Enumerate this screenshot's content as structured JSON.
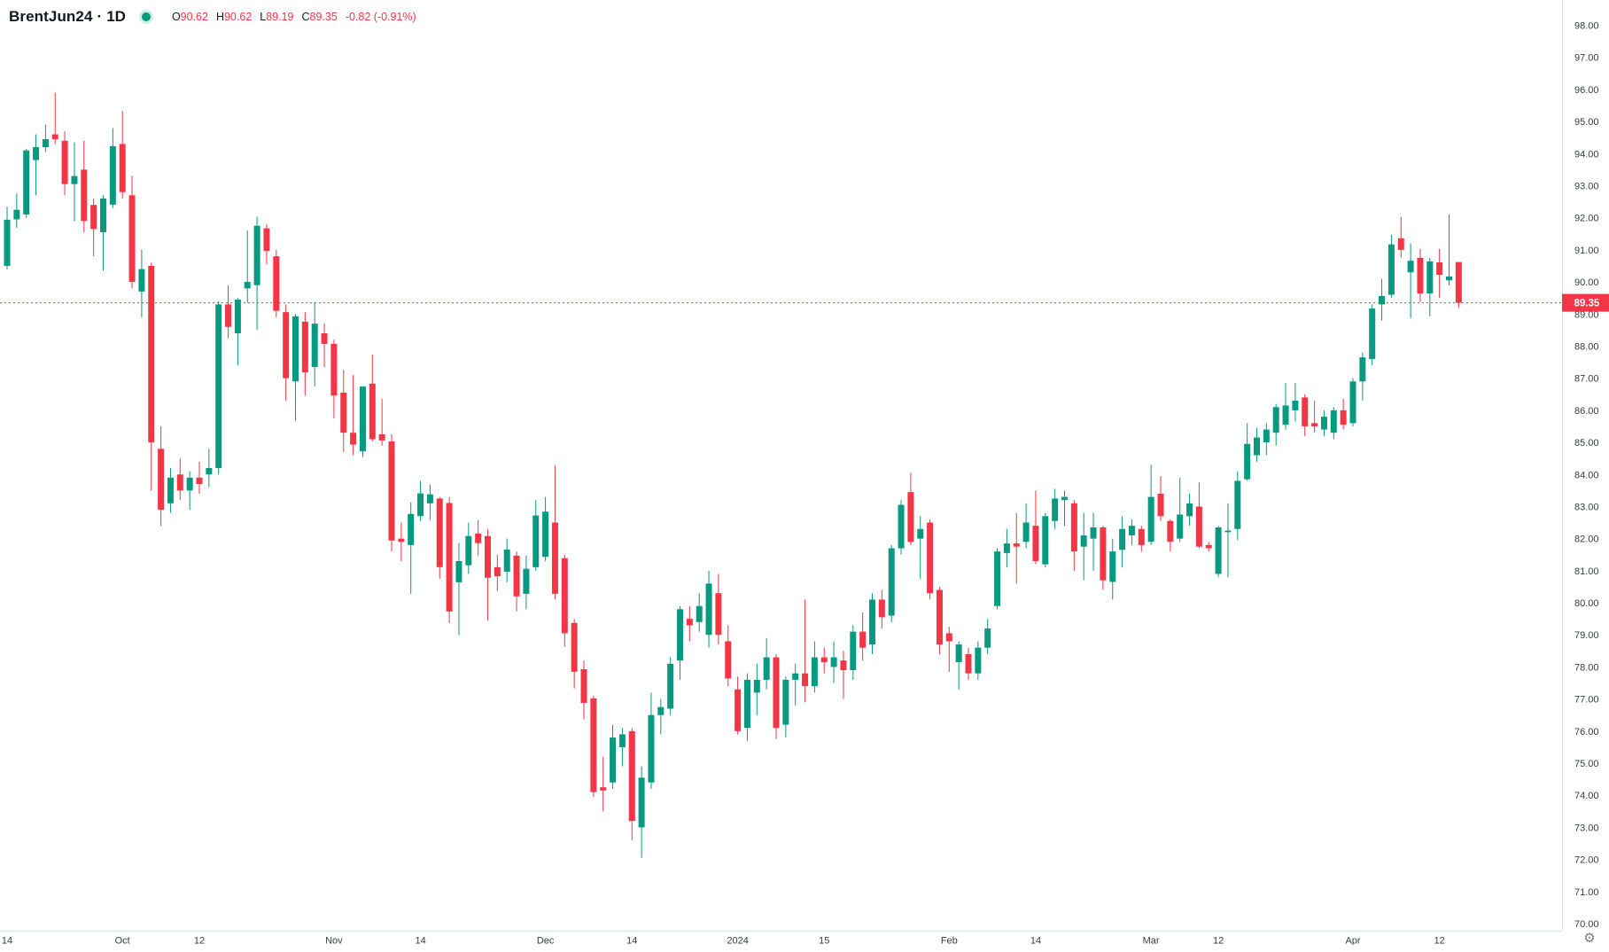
{
  "header": {
    "symbol": "BrentJun24",
    "separator": "·",
    "interval": "1D",
    "ohlc": {
      "open_label": "O",
      "open": "90.62",
      "high_label": "H",
      "high": "90.62",
      "low_label": "L",
      "low": "89.19",
      "close_label": "C",
      "close": "89.35",
      "change": "-0.82 (-0.91%)"
    }
  },
  "colors": {
    "up": "#089981",
    "down": "#F23645",
    "axis_text": "#363A45",
    "axis_line": "#E0E3EB",
    "last_price_line": "#F23645",
    "badge_bg": "#F23645",
    "badge_text": "#FFFFFF",
    "title_text": "#131722",
    "status_dot": "#089981"
  },
  "last_price": {
    "display": "89.35",
    "value": 89.35
  },
  "price_axis": {
    "ticks": [
      "98.00",
      "97.00",
      "96.00",
      "95.00",
      "94.00",
      "93.00",
      "92.00",
      "91.00",
      "90.00",
      "89.00",
      "88.00",
      "87.00",
      "86.00",
      "85.00",
      "84.00",
      "83.00",
      "82.00",
      "81.00",
      "80.00",
      "79.00",
      "78.00",
      "77.00",
      "76.00",
      "75.00",
      "74.00",
      "73.00",
      "72.00",
      "71.00",
      "70.00"
    ]
  },
  "time_axis": {
    "labels": [
      {
        "text": "14",
        "date": "2023-09-14"
      },
      {
        "text": "Oct",
        "date": "2023-10-02"
      },
      {
        "text": "12",
        "date": "2023-10-12"
      },
      {
        "text": "Nov",
        "date": "2023-11-01"
      },
      {
        "text": "14",
        "date": "2023-11-14"
      },
      {
        "text": "Dec",
        "date": "2023-12-01"
      },
      {
        "text": "14",
        "date": "2023-12-14"
      },
      {
        "text": "2024",
        "date": "2024-01-02"
      },
      {
        "text": "15",
        "date": "2024-01-15"
      },
      {
        "text": "Feb",
        "date": "2024-02-01"
      },
      {
        "text": "14",
        "date": "2024-02-14"
      },
      {
        "text": "Mar",
        "date": "2024-03-01"
      },
      {
        "text": "12",
        "date": "2024-03-12"
      },
      {
        "text": "Apr",
        "date": "2024-04-01"
      },
      {
        "text": "12",
        "date": "2024-04-12"
      }
    ]
  },
  "settings_icon": "⚙",
  "chart_data": {
    "type": "candlestick",
    "title": "BrentJun24 · 1D",
    "xlabel": "",
    "ylabel": "",
    "ylim": [
      70,
      98
    ],
    "grid": false,
    "legend_position": "top-left",
    "columns": [
      "date",
      "open",
      "high",
      "low",
      "close"
    ],
    "candles": [
      [
        "2023-09-14",
        90.5,
        92.35,
        90.4,
        91.94
      ],
      [
        "2023-09-15",
        91.95,
        92.76,
        91.69,
        92.25
      ],
      [
        "2023-09-18",
        92.1,
        94.15,
        92.0,
        94.1
      ],
      [
        "2023-09-19",
        93.8,
        94.6,
        92.7,
        94.2
      ],
      [
        "2023-09-20",
        94.2,
        94.9,
        94.05,
        94.45
      ],
      [
        "2023-09-21",
        94.6,
        95.9,
        94.3,
        94.45
      ],
      [
        "2023-09-22",
        94.4,
        94.7,
        92.7,
        93.05
      ],
      [
        "2023-09-25",
        93.05,
        94.35,
        91.9,
        93.3
      ],
      [
        "2023-09-26",
        93.5,
        94.4,
        91.55,
        91.9
      ],
      [
        "2023-09-27",
        92.4,
        92.6,
        90.8,
        91.65
      ],
      [
        "2023-09-28",
        91.55,
        92.7,
        90.35,
        92.6
      ],
      [
        "2023-09-29",
        92.41,
        94.8,
        92.3,
        94.23
      ],
      [
        "2023-10-02",
        94.3,
        95.33,
        92.6,
        92.8
      ],
      [
        "2023-10-03",
        92.7,
        93.3,
        89.8,
        90.0
      ],
      [
        "2023-10-04",
        89.7,
        91.0,
        88.9,
        90.4
      ],
      [
        "2023-10-05",
        90.5,
        90.6,
        83.5,
        85.0
      ],
      [
        "2023-10-06",
        84.8,
        85.5,
        82.4,
        82.9
      ],
      [
        "2023-10-09",
        83.1,
        84.2,
        82.8,
        83.9
      ],
      [
        "2023-10-10",
        84.0,
        84.5,
        83.2,
        83.5
      ],
      [
        "2023-10-11",
        83.5,
        84.1,
        82.9,
        83.9
      ],
      [
        "2023-10-12",
        83.9,
        84.4,
        83.4,
        83.7
      ],
      [
        "2023-10-13",
        84.0,
        84.8,
        83.6,
        84.2
      ],
      [
        "2023-10-16",
        84.2,
        89.4,
        84.0,
        89.3
      ],
      [
        "2023-10-17",
        89.3,
        89.9,
        88.25,
        88.6
      ],
      [
        "2023-10-18",
        88.4,
        89.5,
        87.4,
        89.45
      ],
      [
        "2023-10-19",
        89.8,
        91.6,
        89.35,
        90.0
      ],
      [
        "2023-10-20",
        89.9,
        92.03,
        88.5,
        91.75
      ],
      [
        "2023-10-23",
        91.67,
        91.8,
        90.55,
        90.97
      ],
      [
        "2023-10-24",
        90.8,
        91.0,
        88.9,
        89.1
      ],
      [
        "2023-10-25",
        89.06,
        89.3,
        86.3,
        87.0
      ],
      [
        "2023-10-26",
        86.9,
        89.0,
        85.67,
        88.93
      ],
      [
        "2023-10-27",
        88.76,
        89.06,
        86.46,
        87.18
      ],
      [
        "2023-10-30",
        87.35,
        89.37,
        86.74,
        88.7
      ],
      [
        "2023-10-31",
        88.4,
        88.7,
        87.35,
        88.07
      ],
      [
        "2023-11-01",
        88.07,
        88.2,
        85.75,
        86.46
      ],
      [
        "2023-11-02",
        86.55,
        87.26,
        84.7,
        85.3
      ],
      [
        "2023-11-03",
        85.3,
        87.1,
        84.6,
        84.93
      ],
      [
        "2023-11-06",
        84.72,
        86.74,
        84.54,
        86.74
      ],
      [
        "2023-11-07",
        86.83,
        87.74,
        85.03,
        85.1
      ],
      [
        "2023-11-08",
        85.25,
        86.36,
        84.9,
        85.06
      ],
      [
        "2023-11-09",
        85.03,
        85.25,
        81.6,
        81.94
      ],
      [
        "2023-11-10",
        82.0,
        82.5,
        81.3,
        81.9
      ],
      [
        "2023-11-13",
        81.8,
        83.13,
        80.28,
        82.77
      ],
      [
        "2023-11-14",
        82.7,
        83.8,
        82.55,
        83.41
      ],
      [
        "2023-11-15",
        83.1,
        83.69,
        82.58,
        83.38
      ],
      [
        "2023-11-16",
        83.25,
        83.3,
        80.75,
        81.11
      ],
      [
        "2023-11-17",
        83.11,
        83.3,
        79.37,
        79.73
      ],
      [
        "2023-11-20",
        80.64,
        81.86,
        78.99,
        81.3
      ],
      [
        "2023-11-21",
        81.17,
        82.5,
        80.9,
        82.08
      ],
      [
        "2023-11-22",
        82.16,
        82.58,
        81.47,
        81.86
      ],
      [
        "2023-11-23",
        82.08,
        82.3,
        79.45,
        80.78
      ],
      [
        "2023-11-24",
        81.11,
        81.5,
        80.36,
        80.83
      ],
      [
        "2023-11-27",
        80.97,
        82.0,
        80.64,
        81.66
      ],
      [
        "2023-11-28",
        81.47,
        81.6,
        79.73,
        80.2
      ],
      [
        "2023-11-29",
        80.28,
        81.47,
        79.8,
        81.06
      ],
      [
        "2023-11-30",
        81.11,
        83.2,
        81.0,
        82.72
      ],
      [
        "2023-12-01",
        81.43,
        83.3,
        81.3,
        82.84
      ],
      [
        "2023-12-04",
        82.5,
        84.28,
        80.1,
        80.28
      ],
      [
        "2023-12-05",
        81.39,
        81.5,
        78.63,
        79.05
      ],
      [
        "2023-12-06",
        79.37,
        79.5,
        77.33,
        77.85
      ],
      [
        "2023-12-07",
        77.93,
        78.2,
        76.36,
        76.88
      ],
      [
        "2023-12-08",
        77.02,
        77.1,
        73.95,
        74.1
      ],
      [
        "2023-12-11",
        74.25,
        75.2,
        73.5,
        74.15
      ],
      [
        "2023-12-12",
        74.4,
        76.2,
        74.2,
        75.8
      ],
      [
        "2023-12-13",
        75.5,
        76.1,
        74.9,
        75.9
      ],
      [
        "2023-12-14",
        76.0,
        76.1,
        72.6,
        73.2
      ],
      [
        "2023-12-15",
        73.0,
        74.9,
        72.05,
        74.55
      ],
      [
        "2023-12-18",
        74.4,
        77.2,
        74.2,
        76.5
      ],
      [
        "2023-12-19",
        76.5,
        77.0,
        75.9,
        76.75
      ],
      [
        "2023-12-20",
        76.7,
        78.3,
        76.5,
        78.1
      ],
      [
        "2023-12-21",
        78.2,
        79.9,
        77.6,
        79.8
      ],
      [
        "2023-12-22",
        79.5,
        79.9,
        78.8,
        79.3
      ],
      [
        "2023-12-26",
        79.4,
        80.3,
        79.1,
        79.9
      ],
      [
        "2023-12-27",
        79.0,
        81.0,
        78.6,
        80.6
      ],
      [
        "2023-12-28",
        80.3,
        80.9,
        78.7,
        79.0
      ],
      [
        "2023-12-29",
        78.8,
        79.3,
        77.4,
        77.64
      ],
      [
        "2024-01-02",
        77.3,
        77.7,
        75.9,
        76.0
      ],
      [
        "2024-01-03",
        76.1,
        77.8,
        75.7,
        77.6
      ],
      [
        "2024-01-04",
        77.2,
        78.1,
        76.5,
        77.6
      ],
      [
        "2024-01-05",
        77.6,
        78.9,
        77.3,
        78.3
      ],
      [
        "2024-01-08",
        78.3,
        78.4,
        75.75,
        76.1
      ],
      [
        "2024-01-09",
        76.2,
        77.7,
        75.8,
        77.6
      ],
      [
        "2024-01-10",
        77.6,
        78.1,
        76.8,
        77.8
      ],
      [
        "2024-01-11",
        77.8,
        80.1,
        76.9,
        77.4
      ],
      [
        "2024-01-12",
        77.4,
        78.8,
        77.2,
        78.3
      ],
      [
        "2024-01-15",
        78.3,
        78.6,
        77.8,
        78.15
      ],
      [
        "2024-01-16",
        78.0,
        78.8,
        77.5,
        78.3
      ],
      [
        "2024-01-17",
        78.2,
        78.5,
        77.0,
        77.9
      ],
      [
        "2024-01-18",
        77.9,
        79.3,
        77.6,
        79.1
      ],
      [
        "2024-01-19",
        79.1,
        79.7,
        78.2,
        78.6
      ],
      [
        "2024-01-22",
        78.7,
        80.3,
        78.4,
        80.1
      ],
      [
        "2024-01-23",
        80.1,
        80.4,
        79.2,
        79.55
      ],
      [
        "2024-01-24",
        79.6,
        81.8,
        79.4,
        81.7
      ],
      [
        "2024-01-25",
        81.7,
        83.2,
        81.5,
        83.05
      ],
      [
        "2024-01-26",
        83.45,
        84.05,
        81.8,
        81.9
      ],
      [
        "2024-01-29",
        82.0,
        82.7,
        80.75,
        82.3
      ],
      [
        "2024-01-30",
        82.5,
        82.6,
        80.1,
        80.3
      ],
      [
        "2024-01-31",
        80.4,
        80.5,
        78.4,
        78.7
      ],
      [
        "2024-02-01",
        79.05,
        79.25,
        77.85,
        78.8
      ],
      [
        "2024-02-02",
        78.15,
        78.8,
        77.3,
        78.7
      ],
      [
        "2024-02-05",
        78.4,
        78.6,
        77.6,
        77.8
      ],
      [
        "2024-02-06",
        77.8,
        78.8,
        77.6,
        78.6
      ],
      [
        "2024-02-07",
        78.6,
        79.5,
        78.4,
        79.2
      ],
      [
        "2024-02-08",
        79.9,
        81.7,
        79.8,
        81.6
      ],
      [
        "2024-02-09",
        81.55,
        82.3,
        81.1,
        81.85
      ],
      [
        "2024-02-12",
        81.85,
        82.8,
        80.6,
        81.75
      ],
      [
        "2024-02-13",
        81.9,
        83.1,
        81.7,
        82.5
      ],
      [
        "2024-02-14",
        82.4,
        83.5,
        81.2,
        81.3
      ],
      [
        "2024-02-15",
        81.2,
        82.8,
        81.1,
        82.7
      ],
      [
        "2024-02-16",
        82.55,
        83.55,
        82.3,
        83.25
      ],
      [
        "2024-02-19",
        83.2,
        83.5,
        82.4,
        83.3
      ],
      [
        "2024-02-20",
        83.1,
        83.2,
        81.0,
        81.6
      ],
      [
        "2024-02-21",
        81.75,
        82.8,
        80.7,
        82.1
      ],
      [
        "2024-02-22",
        82.0,
        82.8,
        81.0,
        82.35
      ],
      [
        "2024-02-23",
        82.35,
        82.4,
        80.4,
        80.7
      ],
      [
        "2024-02-26",
        80.65,
        82.0,
        80.1,
        81.6
      ],
      [
        "2024-02-27",
        81.65,
        82.7,
        81.1,
        82.3
      ],
      [
        "2024-02-28",
        82.1,
        82.6,
        81.8,
        82.4
      ],
      [
        "2024-02-29",
        82.3,
        82.4,
        81.6,
        81.8
      ],
      [
        "2024-03-01",
        81.9,
        84.3,
        81.8,
        83.3
      ],
      [
        "2024-03-04",
        83.4,
        83.95,
        82.55,
        82.7
      ],
      [
        "2024-03-05",
        82.55,
        82.6,
        81.6,
        81.9
      ],
      [
        "2024-03-06",
        82.0,
        83.9,
        81.9,
        82.75
      ],
      [
        "2024-03-07",
        82.7,
        83.4,
        82.4,
        83.1
      ],
      [
        "2024-03-08",
        83.0,
        83.75,
        81.7,
        81.75
      ],
      [
        "2024-03-11",
        81.8,
        81.9,
        81.6,
        81.7
      ],
      [
        "2024-03-12",
        80.9,
        82.4,
        80.8,
        82.35
      ],
      [
        "2024-03-13",
        82.2,
        83.1,
        80.8,
        82.25
      ],
      [
        "2024-03-14",
        82.3,
        84.1,
        81.95,
        83.8
      ],
      [
        "2024-03-15",
        83.85,
        85.6,
        83.8,
        84.95
      ],
      [
        "2024-03-18",
        84.6,
        85.45,
        84.4,
        85.15
      ],
      [
        "2024-03-19",
        85.0,
        85.6,
        84.6,
        85.4
      ],
      [
        "2024-03-20",
        85.3,
        86.2,
        84.9,
        86.1
      ],
      [
        "2024-03-21",
        85.55,
        86.85,
        85.4,
        86.15
      ],
      [
        "2024-03-22",
        86.0,
        86.85,
        85.65,
        86.3
      ],
      [
        "2024-03-25",
        86.4,
        86.5,
        85.2,
        85.5
      ],
      [
        "2024-03-26",
        85.6,
        86.3,
        85.3,
        85.5
      ],
      [
        "2024-03-27",
        85.4,
        86.0,
        85.2,
        85.8
      ],
      [
        "2024-03-28",
        85.3,
        86.1,
        85.1,
        86.0
      ],
      [
        "2024-03-29",
        86.0,
        86.35,
        85.4,
        85.55
      ],
      [
        "2024-04-01",
        85.6,
        87.0,
        85.5,
        86.9
      ],
      [
        "2024-04-02",
        86.9,
        87.8,
        86.3,
        87.65
      ],
      [
        "2024-04-03",
        87.6,
        89.3,
        87.4,
        89.17
      ],
      [
        "2024-04-04",
        89.3,
        90.1,
        88.8,
        89.56
      ],
      [
        "2024-04-05",
        89.6,
        91.47,
        89.5,
        91.17
      ],
      [
        "2024-04-08",
        91.36,
        92.03,
        90.75,
        91.0
      ],
      [
        "2024-04-09",
        90.3,
        91.19,
        88.87,
        90.66
      ],
      [
        "2024-04-10",
        90.75,
        91.03,
        89.37,
        89.64
      ],
      [
        "2024-04-11",
        89.64,
        90.75,
        88.93,
        90.64
      ],
      [
        "2024-04-12",
        90.61,
        91.03,
        89.5,
        90.22
      ],
      [
        "2024-04-15",
        90.05,
        92.1,
        89.9,
        90.17
      ],
      [
        "2024-04-16",
        90.62,
        90.62,
        89.19,
        89.35
      ]
    ]
  }
}
